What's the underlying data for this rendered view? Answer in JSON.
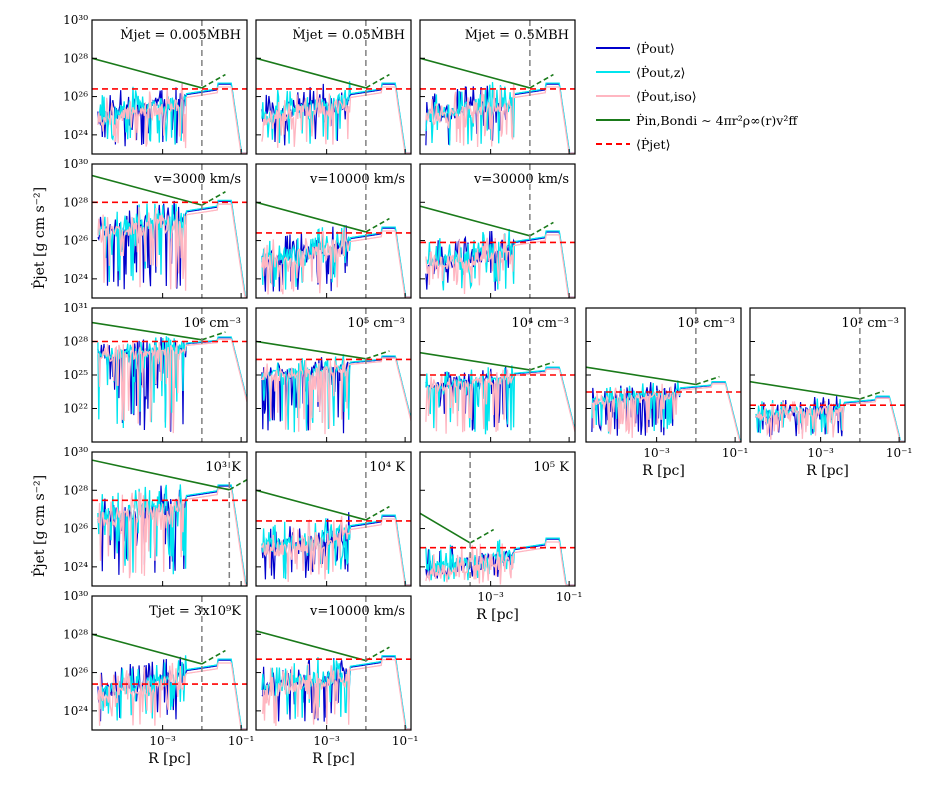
{
  "figure": {
    "ylabel": "Ṗjet [g cm s⁻²]",
    "xlabel": "R [pc]",
    "x_ticks": [
      "10⁻³",
      "10⁻¹"
    ],
    "y_ticks_a": [
      "10²⁴",
      "10²⁶",
      "10²⁸",
      "10³⁰"
    ],
    "y_ticks_b": [
      "10²²",
      "10²⁵",
      "10²⁸",
      "10³¹"
    ]
  },
  "legend": [
    {
      "label": "⟨Ṗout⟩",
      "color": "#0000cc",
      "dash": false
    },
    {
      "label": "⟨Ṗout,z⟩",
      "color": "#00e5ee",
      "dash": false
    },
    {
      "label": "⟨Ṗout,iso⟩",
      "color": "#ffb6c1",
      "dash": false
    },
    {
      "label": "Ṗin,Bondi ∼ 4πr²ρ∞(r)v²ff",
      "color": "#1a7a1a",
      "dash": false
    },
    {
      "label": "⟨Ṗjet⟩",
      "color": "#ff0000",
      "dash": true
    }
  ],
  "colors": {
    "out": "#0000cc",
    "outz": "#00e5ee",
    "iso": "#ffb6c1",
    "bondi": "#1a7a1a",
    "jet": "#ff0000",
    "vline": "#808080"
  },
  "chart_data": [
    {
      "type": "line",
      "row": 0,
      "col": 0,
      "annotation": "Ṁjet = 0.005ṀBH",
      "ylim": [
        "1e23",
        "1e30"
      ],
      "jet_level": "2.5e26",
      "peak": "4e26",
      "vline_x": "0.01",
      "x_labels": false
    },
    {
      "type": "line",
      "row": 0,
      "col": 1,
      "annotation": "Ṁjet = 0.05ṀBH",
      "ylim": [
        "1e23",
        "1e30"
      ],
      "jet_level": "2.5e26",
      "peak": "4e26",
      "vline_x": "0.01",
      "x_labels": false
    },
    {
      "type": "line",
      "row": 0,
      "col": 2,
      "annotation": "Ṁjet = 0.5ṀBH",
      "ylim": [
        "1e23",
        "1e30"
      ],
      "jet_level": "2.5e26",
      "peak": "4e26",
      "vline_x": "0.01",
      "x_labels": false
    },
    {
      "type": "line",
      "row": 1,
      "col": 0,
      "annotation": "v=3000 km/s",
      "ylim": [
        "1e23",
        "1e30"
      ],
      "jet_level": "1e28",
      "peak": "1e28",
      "vline_x": "0.01",
      "x_labels": false
    },
    {
      "type": "line",
      "row": 1,
      "col": 1,
      "annotation": "v=10000 km/s",
      "ylim": [
        "1e23",
        "1e30"
      ],
      "jet_level": "2.5e26",
      "peak": "4e26",
      "vline_x": "0.01",
      "x_labels": false
    },
    {
      "type": "line",
      "row": 1,
      "col": 2,
      "annotation": "v=30000 km/s",
      "ylim": [
        "1e23",
        "1e30"
      ],
      "jet_level": "8e25",
      "peak": "2.5e26",
      "vline_x": "0.01",
      "x_labels": false
    },
    {
      "type": "line",
      "row": 2,
      "col": 0,
      "annotation": "10⁶ cm⁻³",
      "ylim": [
        "1e19",
        "1e31"
      ],
      "jet_level": "1e28",
      "peak": "2e28",
      "vline_x": "0.01",
      "x_labels": false
    },
    {
      "type": "line",
      "row": 2,
      "col": 1,
      "annotation": "10⁵ cm⁻³",
      "ylim": [
        "1e19",
        "1e31"
      ],
      "jet_level": "2.5e26",
      "peak": "4e26",
      "vline_x": "0.01",
      "x_labels": false
    },
    {
      "type": "line",
      "row": 2,
      "col": 2,
      "annotation": "10⁴ cm⁻³",
      "ylim": [
        "1e19",
        "1e31"
      ],
      "jet_level": "1e25",
      "peak": "4e25",
      "vline_x": "0.01",
      "x_labels": false
    },
    {
      "type": "line",
      "row": 2,
      "col": 3,
      "annotation": "10³ cm⁻³",
      "ylim": [
        "1e19",
        "1e31"
      ],
      "jet_level": "3e23",
      "peak": "2e24",
      "vline_x": "0.01",
      "x_labels": true
    },
    {
      "type": "line",
      "row": 2,
      "col": 4,
      "annotation": "10² cm⁻³",
      "ylim": [
        "1e19",
        "1e31"
      ],
      "jet_level": "2e22",
      "peak": "1e23",
      "vline_x": "0.01",
      "x_labels": true
    },
    {
      "type": "line",
      "row": 3,
      "col": 0,
      "annotation": "10³ K",
      "ylim": [
        "1e23",
        "1e30"
      ],
      "jet_level": "3e27",
      "peak": "1.5e28",
      "vline_x": "0.05",
      "x_labels": false
    },
    {
      "type": "line",
      "row": 3,
      "col": 1,
      "annotation": "10⁴ K",
      "ylim": [
        "1e23",
        "1e30"
      ],
      "jet_level": "2.5e26",
      "peak": "4e26",
      "vline_x": "0.01",
      "x_labels": false
    },
    {
      "type": "line",
      "row": 3,
      "col": 2,
      "annotation": "10⁵ K",
      "ylim": [
        "1e23",
        "1e30"
      ],
      "jet_level": "1e25",
      "peak": "2.5e25",
      "vline_x": "0.0003",
      "x_labels": true
    },
    {
      "type": "line",
      "row": 4,
      "col": 0,
      "annotation": "Tjet = 3x10⁹K",
      "ylim": [
        "1e23",
        "1e30"
      ],
      "jet_level": "2.5e25",
      "peak": "4e26",
      "vline_x": "0.01",
      "x_labels": true
    },
    {
      "type": "line",
      "row": 4,
      "col": 1,
      "annotation": "v=10000 km/s",
      "ylim": [
        "1e23",
        "1e30"
      ],
      "jet_level": "5e26",
      "peak": "6e26",
      "vline_x": "0.01",
      "x_labels": true
    }
  ]
}
